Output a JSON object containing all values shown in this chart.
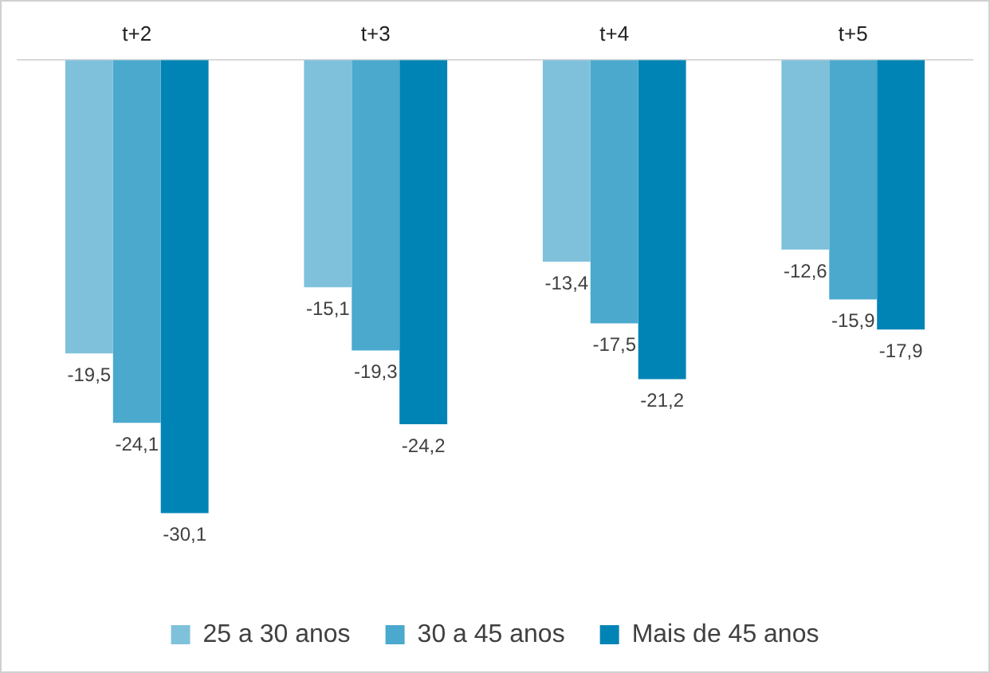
{
  "chart_data": {
    "type": "bar",
    "categories": [
      "t+2",
      "t+3",
      "t+4",
      "t+5"
    ],
    "series": [
      {
        "name": "25 a 30 anos",
        "color": "#7fc1db",
        "values": [
          -19.5,
          -15.1,
          -13.4,
          -12.6
        ],
        "value_labels": [
          "-19,5",
          "-15,1",
          "-13,4",
          "-12,6"
        ]
      },
      {
        "name": "30 a 45 anos",
        "color": "#4aa9cd",
        "values": [
          -24.1,
          -19.3,
          -17.5,
          -15.9
        ],
        "value_labels": [
          "-24,1",
          "-19,3",
          "-17,5",
          "-15,9"
        ]
      },
      {
        "name": "Mais de 45 anos",
        "color": "#0084b6",
        "values": [
          -30.1,
          -24.2,
          -21.2,
          -17.9
        ],
        "value_labels": [
          "-30,1",
          "-24,2",
          "-21,2",
          "-17,9"
        ]
      }
    ],
    "tick_labels": "x",
    "grid": false,
    "legend": "bottom"
  }
}
